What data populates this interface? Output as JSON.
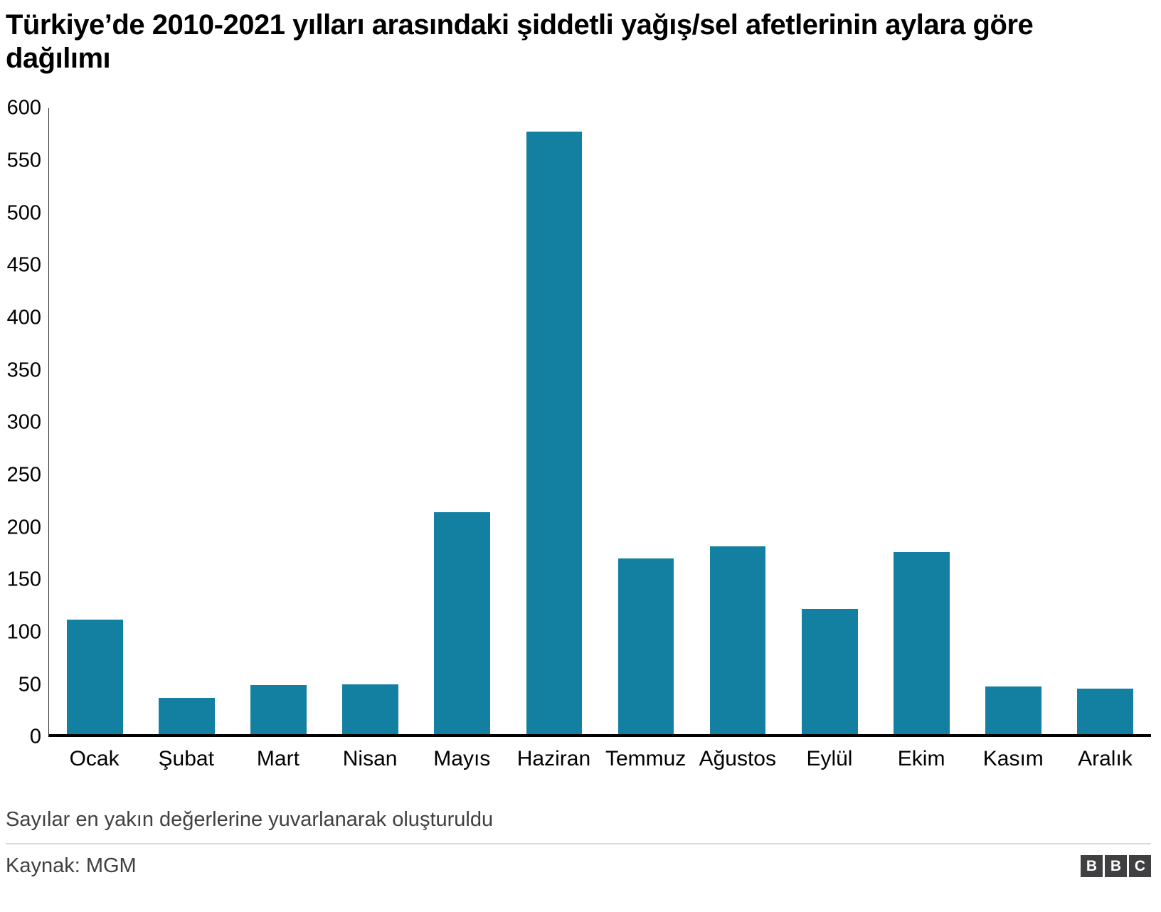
{
  "title": "Türkiye’de 2010-2021 yılları arasındaki şiddetli yağış/sel afetlerinin aylara göre dağılımı",
  "footnote": "Sayılar en yakın değerlerine yuvarlanarak oluşturuldu",
  "source": "Kaynak: MGM",
  "logo": {
    "letters": [
      "B",
      "B",
      "C"
    ]
  },
  "chart_data": {
    "type": "bar",
    "title": "Türkiye’de 2010-2021 yılları arasındaki şiddetli yağış/sel afetlerinin aylara göre dağılımı",
    "categories": [
      "Ocak",
      "Şubat",
      "Mart",
      "Nisan",
      "Mayıs",
      "Haziran",
      "Temmuz",
      "Ağustos",
      "Eylül",
      "Ekim",
      "Kasım",
      "Aralık"
    ],
    "values": [
      110,
      35,
      47,
      48,
      213,
      578,
      169,
      180,
      120,
      175,
      46,
      44
    ],
    "xlabel": "",
    "ylabel": "",
    "ylim": [
      0,
      600
    ],
    "yticks": [
      0,
      50,
      100,
      150,
      200,
      250,
      300,
      350,
      400,
      450,
      500,
      550,
      600
    ],
    "bar_color": "#1380A1",
    "grid": false,
    "legend": "none"
  }
}
